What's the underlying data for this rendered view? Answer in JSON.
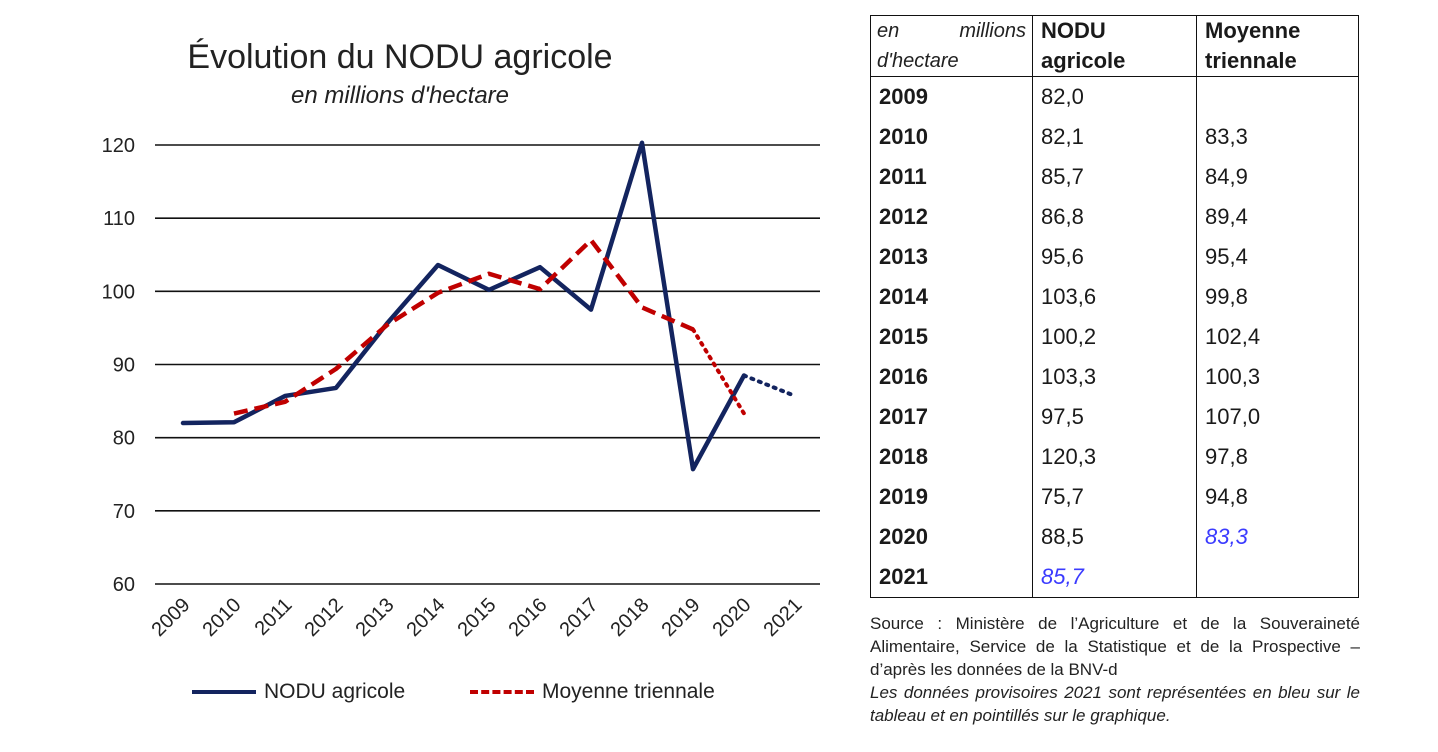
{
  "chart_data": {
    "type": "line",
    "title": "Évolution du NODU agricole",
    "subtitle": "en millions d'hectare",
    "xlabel": "",
    "ylabel": "",
    "categories": [
      "2009",
      "2010",
      "2011",
      "2012",
      "2013",
      "2014",
      "2015",
      "2016",
      "2017",
      "2018",
      "2019",
      "2020",
      "2021"
    ],
    "yticks": [
      60,
      70,
      80,
      90,
      100,
      110,
      120
    ],
    "ylim": [
      60,
      120
    ],
    "grid": true,
    "legend_position": "bottom",
    "series": [
      {
        "name": "NODU agricole",
        "color": "#13245f",
        "style": "solid",
        "values": [
          82.0,
          82.1,
          85.7,
          86.8,
          95.6,
          103.6,
          100.2,
          103.3,
          97.5,
          120.3,
          75.7,
          88.5,
          85.7
        ],
        "provisional_from_index": 11
      },
      {
        "name": "Moyenne triennale",
        "color": "#c00000",
        "style": "dashed",
        "values": [
          null,
          83.3,
          84.9,
          89.4,
          95.4,
          99.8,
          102.4,
          100.3,
          107.0,
          97.8,
          94.8,
          83.3,
          null
        ],
        "provisional_from_index": 10
      }
    ]
  },
  "table": {
    "unit_word1": "en",
    "unit_word2": "millions",
    "unit_line2": "d'hectare",
    "col1_header": "NODU agricole",
    "col2_header": "Moyenne triennale",
    "rows": [
      {
        "year": "2009",
        "nodu": "82,0",
        "moy": ""
      },
      {
        "year": "2010",
        "nodu": "82,1",
        "moy": "83,3"
      },
      {
        "year": "2011",
        "nodu": "85,7",
        "moy": "84,9"
      },
      {
        "year": "2012",
        "nodu": "86,8",
        "moy": "89,4"
      },
      {
        "year": "2013",
        "nodu": "95,6",
        "moy": "95,4"
      },
      {
        "year": "2014",
        "nodu": "103,6",
        "moy": "99,8"
      },
      {
        "year": "2015",
        "nodu": "100,2",
        "moy": "102,4"
      },
      {
        "year": "2016",
        "nodu": "103,3",
        "moy": "100,3"
      },
      {
        "year": "2017",
        "nodu": "97,5",
        "moy": "107,0"
      },
      {
        "year": "2018",
        "nodu": "120,3",
        "moy": "97,8"
      },
      {
        "year": "2019",
        "nodu": "75,7",
        "moy": "94,8"
      },
      {
        "year": "2020",
        "nodu": "88,5",
        "moy": "83,3",
        "moy_provisional": true
      },
      {
        "year": "2021",
        "nodu": "85,7",
        "moy": "",
        "nodu_provisional": true
      }
    ],
    "provisional_color": "#3b3bff"
  },
  "source": {
    "text": "Source : Ministère de l’Agriculture et de la Souveraineté Alimentaire, Service de la Statistique et de la Prospective – d’après les données de la BNV-d",
    "provisional_note": "Les données provisoires 2021 sont représentées en bleu sur le tableau et en pointillés sur le graphique."
  }
}
